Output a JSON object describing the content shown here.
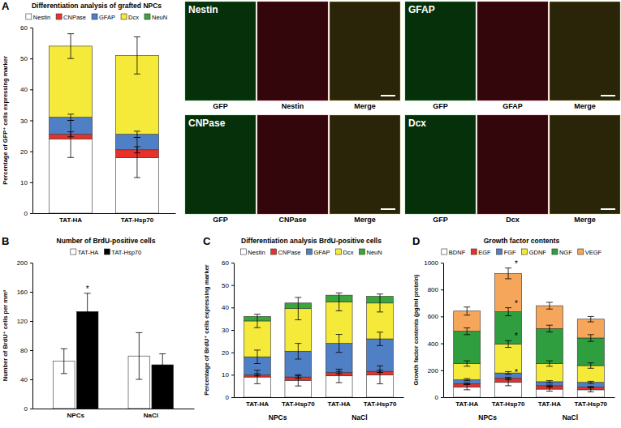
{
  "chart_data": [
    {
      "type": "bar",
      "panel": "A",
      "title": "Differentiation analysis of grafted NPCs",
      "ylabel": "Percentage of GFP⁺ cells expressing marker",
      "categories": [
        "TAT-HA",
        "TAT-Hsp70"
      ],
      "stacked": true,
      "legend": "top",
      "grid": false,
      "ylim": [
        0,
        60
      ],
      "yticks": [
        0,
        10,
        20,
        30,
        40,
        50,
        60
      ],
      "series": [
        {
          "name": "Nestin",
          "color": "#ffffff",
          "values": [
            24,
            18
          ],
          "errors": [
            6,
            6.5
          ]
        },
        {
          "name": "CNPase",
          "color": "#e8312a",
          "values": [
            1.5,
            2.5
          ],
          "errors": [
            0.8,
            1
          ]
        },
        {
          "name": "GFAP",
          "color": "#4f7fc4",
          "values": [
            5.5,
            5
          ],
          "errors": [
            1,
            1
          ]
        },
        {
          "name": "Dcx",
          "color": "#f5e93a",
          "values": [
            23,
            25.5
          ],
          "errors": [
            4,
            6
          ]
        },
        {
          "name": "NeuN",
          "color": "#3aa53a",
          "values": [
            0,
            0
          ]
        }
      ]
    },
    {
      "type": "bar",
      "panel": "B",
      "title": "Number of BrdU-positive cells",
      "ylabel": "Number of BrdU⁺ cells per mm³",
      "categories": [
        "NPCs",
        "NaCl"
      ],
      "stacked": false,
      "legend": "top",
      "grid": false,
      "ylim": [
        0,
        200
      ],
      "yticks": [
        0,
        40,
        80,
        120,
        160,
        200
      ],
      "series": [
        {
          "name": "TAT-HA",
          "color": "#ffffff",
          "values": [
            65,
            72
          ],
          "errors": [
            17,
            32
          ]
        },
        {
          "name": "TAT-Hsp70",
          "color": "#000000",
          "values": [
            133,
            60
          ],
          "errors": [
            25,
            15
          ]
        }
      ],
      "annotations": [
        {
          "text": "*",
          "series": 1,
          "category": 0
        }
      ]
    },
    {
      "type": "bar",
      "panel": "C",
      "title": "Differentiation analysis BrdU-positive cells",
      "ylabel": "Percentage of BrdU⁺ cells expressing marker",
      "categories": [
        "TAT-HA",
        "TAT-Hsp70",
        "TAT-HA",
        "TAT-Hsp70"
      ],
      "group_labels": [
        "NPCs",
        "NaCl"
      ],
      "stacked": true,
      "legend": "top",
      "grid": false,
      "ylim": [
        0,
        60
      ],
      "yticks": [
        0,
        10,
        20,
        30,
        40,
        50,
        60
      ],
      "series": [
        {
          "name": "Nestin",
          "color": "#ffffff",
          "values": [
            9,
            7.5,
            9.5,
            10
          ],
          "errors": [
            3,
            2.5,
            3,
            4
          ]
        },
        {
          "name": "CNPase",
          "color": "#e8312a",
          "values": [
            1,
            1.5,
            1.5,
            1.5
          ],
          "errors": [
            0.5,
            0.5,
            0.5,
            0.5
          ]
        },
        {
          "name": "GFAP",
          "color": "#4f7fc4",
          "values": [
            8,
            11.5,
            13,
            14.5
          ],
          "errors": [
            3,
            3.5,
            4,
            3
          ]
        },
        {
          "name": "Dcx",
          "color": "#f5e93a",
          "values": [
            16,
            19,
            18.5,
            16
          ],
          "errors": [
            3,
            5,
            4,
            4
          ]
        },
        {
          "name": "NeuN",
          "color": "#3aa53a",
          "values": [
            2,
            2.5,
            3,
            3
          ]
        }
      ]
    },
    {
      "type": "bar",
      "panel": "D",
      "title": "Growth factor contents",
      "ylabel": "Growth factor contents (pg/ml protein)",
      "categories": [
        "TAT-HA",
        "TAT-Hsp70",
        "TAT-HA",
        "TAT-Hsp70"
      ],
      "group_labels": [
        "NPCs",
        "NaCl"
      ],
      "stacked": true,
      "legend": "top",
      "grid": false,
      "ylim": [
        0,
        1000
      ],
      "yticks": [
        0,
        200,
        400,
        600,
        800,
        1000
      ],
      "series": [
        {
          "name": "BDNF",
          "color": "#ffffff",
          "values": [
            75,
            110,
            60,
            55
          ],
          "errors": [
            20,
            25,
            15,
            15
          ]
        },
        {
          "name": "EGF",
          "color": "#e8312a",
          "values": [
            25,
            30,
            25,
            20
          ],
          "errors": [
            5,
            8,
            5,
            5
          ]
        },
        {
          "name": "FGF",
          "color": "#4f7fc4",
          "values": [
            30,
            40,
            30,
            35
          ],
          "errors": [
            8,
            10,
            8,
            8
          ]
        },
        {
          "name": "GDNF",
          "color": "#f5e93a",
          "values": [
            120,
            215,
            135,
            125
          ],
          "errors": [
            20,
            25,
            20,
            20
          ]
        },
        {
          "name": "NGF",
          "color": "#2e9e3e",
          "values": [
            240,
            240,
            260,
            205
          ],
          "errors": [
            25,
            30,
            25,
            25
          ]
        },
        {
          "name": "VEGF",
          "color": "#f5a65b",
          "values": [
            150,
            285,
            170,
            140
          ],
          "errors": [
            30,
            40,
            25,
            20
          ]
        }
      ],
      "annotations": [
        {
          "text": "*",
          "series": 1,
          "category": 1
        },
        {
          "text": "*",
          "series": 3,
          "category": 1
        },
        {
          "text": "*",
          "series": 4,
          "category": 1
        },
        {
          "text": "*",
          "series": 5,
          "category": 1
        }
      ]
    }
  ],
  "images": [
    {
      "title": "Nestin",
      "labels": [
        "GFP",
        "Nestin",
        "Merge"
      ]
    },
    {
      "title": "GFAP",
      "labels": [
        "GFP",
        "GFAP",
        "Merge"
      ]
    },
    {
      "title": "CNPase",
      "labels": [
        "GFP",
        "CNPase",
        "Merge"
      ]
    },
    {
      "title": "Dcx",
      "labels": [
        "GFP",
        "Dcx",
        "Merge"
      ]
    }
  ]
}
